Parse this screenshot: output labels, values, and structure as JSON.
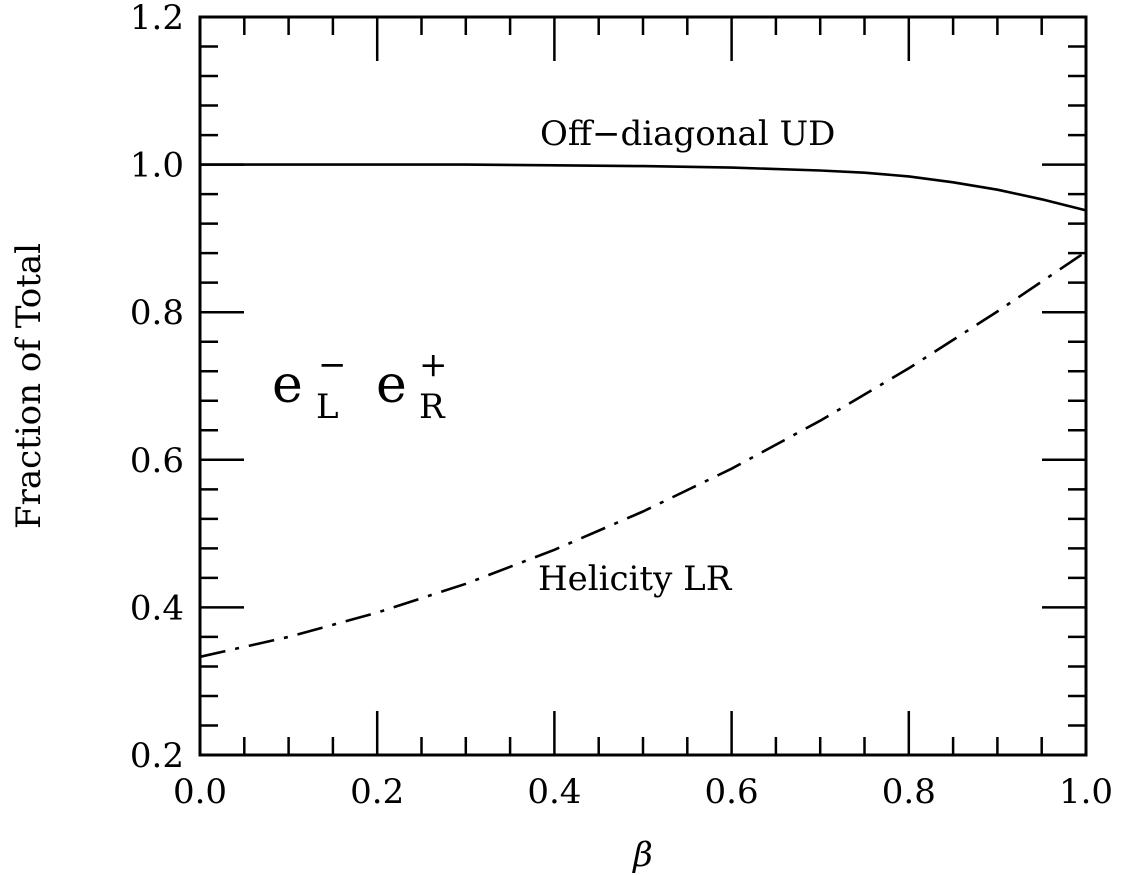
{
  "chart_data": {
    "type": "line",
    "title": "",
    "xlabel": "β",
    "ylabel": "Fraction of Total",
    "xlim": [
      0.0,
      1.0
    ],
    "ylim": [
      0.2,
      1.2
    ],
    "x_ticks": [
      "0.0",
      "0.2",
      "0.4",
      "0.6",
      "0.8",
      "1.0"
    ],
    "y_ticks": [
      "0.2",
      "0.4",
      "0.6",
      "0.8",
      "1.0",
      "1.2"
    ],
    "grid": false,
    "legend": "none",
    "series": [
      {
        "name": "Off−diagonal UD",
        "style": "solid",
        "x": [
          0.0,
          0.1,
          0.2,
          0.3,
          0.4,
          0.5,
          0.6,
          0.7,
          0.75,
          0.8,
          0.85,
          0.9,
          0.95,
          1.0
        ],
        "y": [
          1.0,
          1.0,
          1.0,
          1.0,
          0.999,
          0.998,
          0.996,
          0.992,
          0.989,
          0.984,
          0.976,
          0.966,
          0.953,
          0.938
        ]
      },
      {
        "name": "Helicity LR",
        "style": "dash-dot",
        "x": [
          0.0,
          0.1,
          0.2,
          0.3,
          0.4,
          0.5,
          0.6,
          0.7,
          0.8,
          0.9,
          1.0
        ],
        "y": [
          0.333,
          0.36,
          0.393,
          0.432,
          0.478,
          0.53,
          0.588,
          0.653,
          0.724,
          0.801,
          0.882
        ]
      }
    ],
    "annotations": {
      "particle_base_1": "e",
      "particle_sub_1": "L",
      "particle_sup_1": "−",
      "particle_base_2": "e",
      "particle_sub_2": "R",
      "particle_sup_2": "+"
    }
  }
}
